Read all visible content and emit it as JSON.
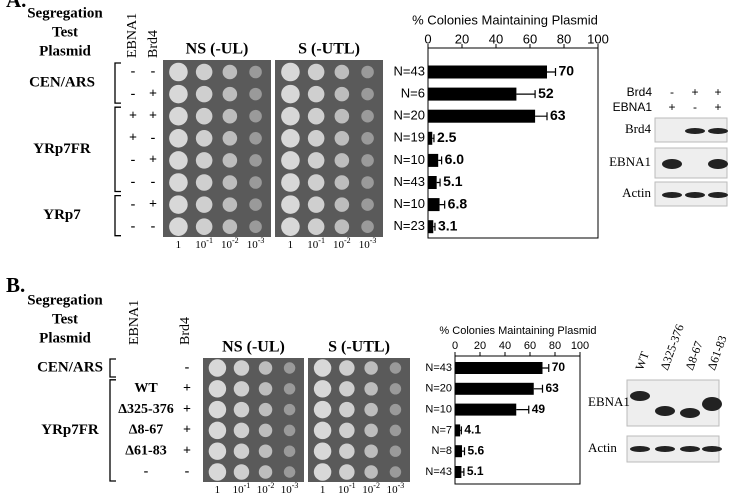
{
  "panel_a": {
    "label": "A.",
    "row_header": [
      "Segregation",
      "Test",
      "Plasmid"
    ],
    "col_headers": [
      "EBNA1",
      "Brd4"
    ],
    "groups": [
      {
        "name": "CEN/ARS",
        "rows": [
          [
            "-",
            "-"
          ],
          [
            "-",
            "+"
          ]
        ]
      },
      {
        "name": "YRp7FR",
        "rows": [
          [
            "+",
            "+"
          ],
          [
            "+",
            "-"
          ],
          [
            "-",
            "+"
          ],
          [
            "-",
            "-"
          ]
        ]
      },
      {
        "name": "YRp7",
        "rows": [
          [
            "-",
            "+"
          ],
          [
            "-",
            "-"
          ]
        ]
      }
    ],
    "plates": [
      "NS (-UL)",
      "S (-UTL)"
    ],
    "dilutions": [
      {
        "base": "1"
      },
      {
        "base": "10",
        "exp": "-1"
      },
      {
        "base": "10",
        "exp": "-2"
      },
      {
        "base": "10",
        "exp": "-3"
      }
    ],
    "western": {
      "conditions": [
        {
          "name": "Brd4",
          "signs": [
            "-",
            "+",
            "+"
          ]
        },
        {
          "name": "EBNA1",
          "signs": [
            "+",
            "-",
            "+"
          ]
        }
      ],
      "blots": [
        "Brd4",
        "EBNA1",
        "Actin"
      ]
    }
  },
  "panel_b": {
    "label": "B.",
    "row_header": [
      "Segregation",
      "Test",
      "Plasmid"
    ],
    "col_headers": [
      "EBNA1",
      "Brd4"
    ],
    "groups": [
      {
        "name": "CEN/ARS",
        "rows": [
          [
            null,
            "-"
          ]
        ]
      },
      {
        "name": "YRp7FR",
        "rows": [
          [
            "WT",
            "+"
          ],
          [
            "Δ325-376",
            "+"
          ],
          [
            "Δ8-67",
            "+"
          ],
          [
            "Δ61-83",
            "+"
          ],
          [
            "-",
            "-"
          ]
        ]
      }
    ],
    "plates": [
      "NS (-UL)",
      "S (-UTL)"
    ],
    "dilutions": [
      {
        "base": "1"
      },
      {
        "base": "10",
        "exp": "-1"
      },
      {
        "base": "10",
        "exp": "-2"
      },
      {
        "base": "10",
        "exp": "-3"
      }
    ],
    "western": {
      "lanes": [
        "WT",
        "Δ325-376",
        "Δ8-67",
        "Δ61-83"
      ],
      "blots": [
        "EBNA1",
        "Actin"
      ]
    }
  },
  "chart_data": [
    {
      "type": "hbar",
      "title": "% Colonies Maintaining Plasmid",
      "categories": [
        "N=43",
        "N=6",
        "N=20",
        "N=19",
        "N=10",
        "N=43",
        "N=10",
        "N=23"
      ],
      "values": [
        70,
        52,
        63,
        2.5,
        6.0,
        5.1,
        6.8,
        3.1
      ],
      "value_labels": [
        "70",
        "52",
        "63",
        "2.5",
        "6.0",
        "5.1",
        "6.8",
        "3.1"
      ],
      "errors": [
        5,
        11,
        7,
        1,
        2,
        2,
        3,
        1
      ],
      "color": "#000000",
      "xlim": [
        0,
        100
      ],
      "xticks": [
        0,
        20,
        40,
        60,
        80,
        100
      ]
    },
    {
      "type": "hbar",
      "title": "% Colonies Maintaining Plasmid",
      "categories": [
        "N=43",
        "N=20",
        "N=10",
        "N=7",
        "N=8",
        "N=43"
      ],
      "values": [
        70,
        63,
        49,
        4.1,
        5.6,
        5.1
      ],
      "value_labels": [
        "70",
        "63",
        "49",
        "4.1",
        "5.6",
        "5.1"
      ],
      "errors": [
        5,
        7,
        10,
        1,
        2,
        2
      ],
      "color": "#000000",
      "xlim": [
        0,
        100
      ],
      "xticks": [
        0,
        20,
        40,
        60,
        80,
        100
      ]
    }
  ]
}
